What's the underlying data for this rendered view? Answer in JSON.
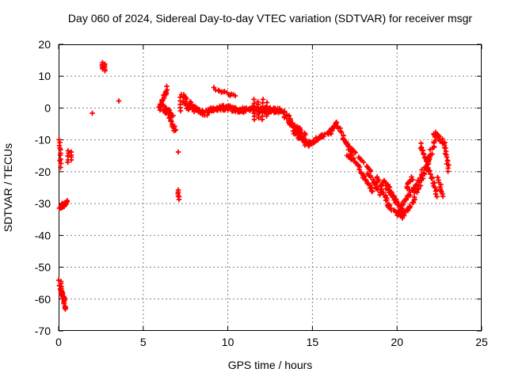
{
  "chart_data": {
    "type": "scatter",
    "title": "Day 060 of 2024, Sidereal Day-to-day VTEC variation (SDTVAR) for receiver msgr",
    "xlabel": "GPS time / hours",
    "ylabel": "SDTVAR / TECUs",
    "xlim": [
      0,
      25
    ],
    "ylim": [
      -70,
      20
    ],
    "xticks": [
      0,
      5,
      10,
      15,
      20,
      25
    ],
    "yticks": [
      20,
      10,
      0,
      -10,
      -20,
      -30,
      -40,
      -50,
      -60,
      -70
    ],
    "grid": true,
    "legend": "none",
    "marker": "plus",
    "colors": {
      "series": "#ff0000",
      "grid": "#808080",
      "axis": "#000000",
      "background": "#ffffff"
    },
    "series": [
      {
        "name": "SDTVAR",
        "segments": [
          {
            "x1": 0.05,
            "y1": -9.8,
            "x2": 0.12,
            "y2": -18.5,
            "n": 11,
            "jx": 0.04,
            "jy": 0.25
          },
          {
            "x1": 0.55,
            "y1": -13.4,
            "x2": 0.57,
            "y2": -17.0,
            "n": 5,
            "jx": 0.03,
            "jy": 0.2
          },
          {
            "x1": 0.72,
            "y1": -13.9,
            "x2": 0.74,
            "y2": -16.4,
            "n": 4,
            "jx": 0.03,
            "jy": 0.2
          },
          {
            "x1": 0.12,
            "y1": -31.2,
            "x2": 0.5,
            "y2": -29.6,
            "n": 26,
            "jx": 0.1,
            "jy": 0.55
          },
          {
            "x1": 0.05,
            "y1": -54.6,
            "x2": 0.3,
            "y2": -61.0,
            "n": 22,
            "jx": 0.06,
            "jy": 1.2
          },
          {
            "x1": 0.15,
            "y1": -56.5,
            "x2": 0.4,
            "y2": -63.0,
            "n": 18,
            "jx": 0.05,
            "jy": 1.0
          },
          {
            "x1": 2.0,
            "y1": -1.6,
            "x2": 2.0,
            "y2": -1.6,
            "n": 1,
            "jx": 0,
            "jy": 0
          },
          {
            "x1": 2.6,
            "y1": 14.3,
            "x2": 2.6,
            "y2": 12.1,
            "n": 5,
            "jx": 0.02,
            "jy": 0.15
          },
          {
            "x1": 2.73,
            "y1": 13.7,
            "x2": 2.73,
            "y2": 11.6,
            "n": 5,
            "jx": 0.02,
            "jy": 0.15
          },
          {
            "x1": 3.55,
            "y1": 2.2,
            "x2": 3.55,
            "y2": 2.2,
            "n": 1,
            "jx": 0,
            "jy": 0
          },
          {
            "x1": 6.05,
            "y1": 1.0,
            "x2": 6.4,
            "y2": 6.3,
            "n": 16,
            "jx": 0.07,
            "jy": 0.5
          },
          {
            "x1": 6.0,
            "y1": 0.3,
            "x2": 6.7,
            "y2": -1.8,
            "n": 30,
            "jx": 0.12,
            "jy": 1.0
          },
          {
            "x1": 6.5,
            "y1": -2.3,
            "x2": 6.9,
            "y2": -7.4,
            "n": 16,
            "jx": 0.06,
            "jy": 0.5
          },
          {
            "x1": 7.25,
            "y1": 3.6,
            "x2": 7.95,
            "y2": 0.2,
            "n": 26,
            "jx": 0.12,
            "jy": 1.1
          },
          {
            "x1": 7.18,
            "y1": 2.2,
            "x2": 7.18,
            "y2": -0.8,
            "n": 4,
            "jx": 0.02,
            "jy": 0.1
          },
          {
            "x1": 7.07,
            "y1": -13.8,
            "x2": 7.07,
            "y2": -13.8,
            "n": 1,
            "jx": 0,
            "jy": 0
          },
          {
            "x1": 7.05,
            "y1": -25.9,
            "x2": 7.1,
            "y2": -28.6,
            "n": 6,
            "jx": 0.04,
            "jy": 0.2
          },
          {
            "x1": 7.6,
            "y1": 0.6,
            "x2": 8.7,
            "y2": -1.6,
            "n": 34,
            "jx": 0.12,
            "jy": 0.8
          },
          {
            "x1": 8.7,
            "y1": -1.0,
            "x2": 9.7,
            "y2": 0.2,
            "n": 34,
            "jx": 0.12,
            "jy": 0.8
          },
          {
            "x1": 9.7,
            "y1": 0.1,
            "x2": 10.9,
            "y2": -0.9,
            "n": 40,
            "jx": 0.12,
            "jy": 0.8
          },
          {
            "x1": 10.9,
            "y1": -0.4,
            "x2": 12.3,
            "y2": -0.7,
            "n": 46,
            "jx": 0.12,
            "jy": 1.0
          },
          {
            "x1": 12.3,
            "y1": -0.3,
            "x2": 13.3,
            "y2": -1.4,
            "n": 32,
            "jx": 0.12,
            "jy": 0.9
          },
          {
            "x1": 9.2,
            "y1": 6.1,
            "x2": 10.45,
            "y2": 3.7,
            "n": 14,
            "jx": 0.06,
            "jy": 0.35
          },
          {
            "x1": 11.55,
            "y1": 2.6,
            "x2": 11.55,
            "y2": -3.6,
            "n": 7,
            "jx": 0.02,
            "jy": 0.1
          },
          {
            "x1": 11.8,
            "y1": 2.0,
            "x2": 11.8,
            "y2": -3.0,
            "n": 6,
            "jx": 0.02,
            "jy": 0.1
          },
          {
            "x1": 12.05,
            "y1": 2.6,
            "x2": 12.05,
            "y2": -3.6,
            "n": 7,
            "jx": 0.02,
            "jy": 0.1
          },
          {
            "x1": 12.3,
            "y1": 1.6,
            "x2": 12.3,
            "y2": -2.6,
            "n": 5,
            "jx": 0.02,
            "jy": 0.1
          },
          {
            "x1": 13.3,
            "y1": -1.4,
            "x2": 14.3,
            "y2": -8.6,
            "n": 30,
            "jx": 0.1,
            "jy": 1.0
          },
          {
            "x1": 13.6,
            "y1": -4.6,
            "x2": 14.6,
            "y2": -8.2,
            "n": 20,
            "jx": 0.1,
            "jy": 0.7
          },
          {
            "x1": 13.9,
            "y1": -7.5,
            "x2": 14.7,
            "y2": -11.5,
            "n": 24,
            "jx": 0.1,
            "jy": 0.8
          },
          {
            "x1": 14.7,
            "y1": -11.5,
            "x2": 15.6,
            "y2": -8.6,
            "n": 24,
            "jx": 0.1,
            "jy": 0.8
          },
          {
            "x1": 15.7,
            "y1": -8.8,
            "x2": 16.1,
            "y2": -7.0,
            "n": 6,
            "jx": 0.05,
            "jy": 0.3
          },
          {
            "x1": 15.95,
            "y1": -8.6,
            "x2": 16.45,
            "y2": -4.8,
            "n": 16,
            "jx": 0.07,
            "jy": 0.6
          },
          {
            "x1": 16.5,
            "y1": -5.4,
            "x2": 17.45,
            "y2": -16.6,
            "n": 26,
            "jx": 0.07,
            "jy": 0.6
          },
          {
            "x1": 16.85,
            "y1": -9.8,
            "x2": 17.1,
            "y2": -11.4,
            "n": 5,
            "jx": 0.03,
            "jy": 0.15
          },
          {
            "x1": 17.3,
            "y1": -12.6,
            "x2": 17.55,
            "y2": -14.2,
            "n": 5,
            "jx": 0.03,
            "jy": 0.15
          },
          {
            "x1": 17.75,
            "y1": -15.4,
            "x2": 18.0,
            "y2": -17.0,
            "n": 5,
            "jx": 0.03,
            "jy": 0.15
          },
          {
            "x1": 18.2,
            "y1": -18.2,
            "x2": 18.45,
            "y2": -19.8,
            "n": 5,
            "jx": 0.03,
            "jy": 0.15
          },
          {
            "x1": 17.05,
            "y1": -14.8,
            "x2": 17.3,
            "y2": -16.2,
            "n": 5,
            "jx": 0.03,
            "jy": 0.15
          },
          {
            "x1": 17.55,
            "y1": -17.2,
            "x2": 17.8,
            "y2": -18.4,
            "n": 5,
            "jx": 0.03,
            "jy": 0.15
          },
          {
            "x1": 17.8,
            "y1": -19.6,
            "x2": 18.55,
            "y2": -26.2,
            "n": 18,
            "jx": 0.07,
            "jy": 0.5
          },
          {
            "x1": 18.3,
            "y1": -20.2,
            "x2": 19.0,
            "y2": -26.8,
            "n": 16,
            "jx": 0.07,
            "jy": 0.5
          },
          {
            "x1": 18.75,
            "y1": -21.8,
            "x2": 19.6,
            "y2": -31.2,
            "n": 22,
            "jx": 0.08,
            "jy": 0.6
          },
          {
            "x1": 19.15,
            "y1": -22.6,
            "x2": 20.0,
            "y2": -30.0,
            "n": 20,
            "jx": 0.08,
            "jy": 0.6
          },
          {
            "x1": 19.5,
            "y1": -25.0,
            "x2": 20.35,
            "y2": -32.8,
            "n": 20,
            "jx": 0.08,
            "jy": 0.6
          },
          {
            "x1": 19.4,
            "y1": -30.5,
            "x2": 20.3,
            "y2": -34.2,
            "n": 20,
            "jx": 0.1,
            "jy": 0.6
          },
          {
            "x1": 20.3,
            "y1": -34.2,
            "x2": 20.75,
            "y2": -30.6,
            "n": 12,
            "jx": 0.08,
            "jy": 0.5
          },
          {
            "x1": 20.05,
            "y1": -32.8,
            "x2": 21.1,
            "y2": -24.0,
            "n": 24,
            "jx": 0.08,
            "jy": 0.6
          },
          {
            "x1": 20.55,
            "y1": -25.2,
            "x2": 20.9,
            "y2": -21.8,
            "n": 10,
            "jx": 0.06,
            "jy": 0.4
          },
          {
            "x1": 20.9,
            "y1": -29.6,
            "x2": 22.0,
            "y2": -15.0,
            "n": 28,
            "jx": 0.08,
            "jy": 0.7
          },
          {
            "x1": 21.2,
            "y1": -24.0,
            "x2": 22.4,
            "y2": -8.6,
            "n": 30,
            "jx": 0.08,
            "jy": 0.7
          },
          {
            "x1": 21.35,
            "y1": -11.2,
            "x2": 22.4,
            "y2": -27.4,
            "n": 28,
            "jx": 0.07,
            "jy": 0.6
          },
          {
            "x1": 22.1,
            "y1": -7.6,
            "x2": 22.8,
            "y2": -10.6,
            "n": 16,
            "jx": 0.1,
            "jy": 0.9
          },
          {
            "x1": 22.75,
            "y1": -10.8,
            "x2": 23.05,
            "y2": -19.6,
            "n": 14,
            "jx": 0.06,
            "jy": 0.5
          },
          {
            "x1": 22.45,
            "y1": -22.0,
            "x2": 22.75,
            "y2": -27.6,
            "n": 10,
            "jx": 0.06,
            "jy": 0.4
          }
        ]
      }
    ]
  }
}
